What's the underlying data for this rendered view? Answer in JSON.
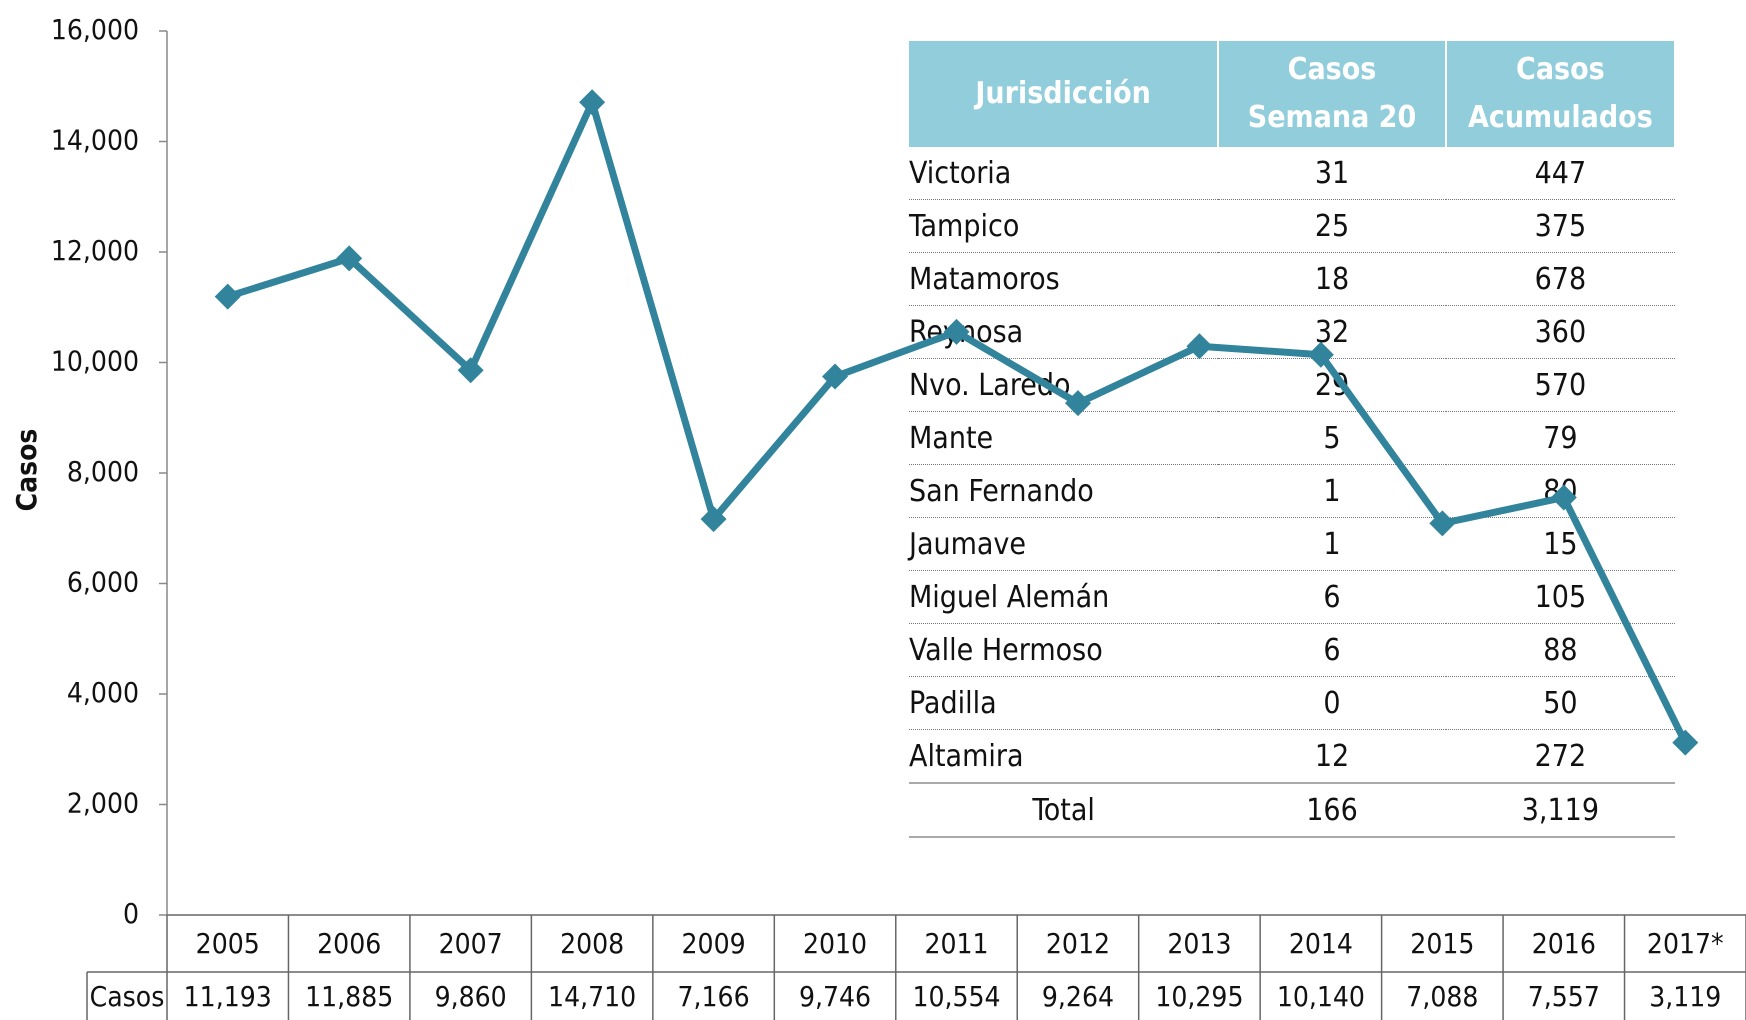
{
  "chart_data": {
    "type": "line",
    "y_label": "Casos",
    "categories": [
      "2005",
      "2006",
      "2007",
      "2008",
      "2009",
      "2010",
      "2011",
      "2012",
      "2013",
      "2014",
      "2015",
      "2016",
      "2017*"
    ],
    "series": [
      {
        "name": "Casos",
        "color": "#31849b",
        "values": [
          11193,
          11885,
          9860,
          14710,
          7166,
          9746,
          10554,
          9264,
          10295,
          10140,
          7088,
          7557,
          3119
        ],
        "value_labels": [
          "11,193",
          "11,885",
          "9,860",
          "14,710",
          "7,166",
          "9,746",
          "10,554",
          "9,264",
          "10,295",
          "10,140",
          "7,088",
          "7,557",
          "3,119"
        ]
      }
    ],
    "ylim": [
      0,
      16000
    ],
    "yticks": [
      0,
      {
        "value": 2000,
        "label": "2,000"
      },
      {
        "value": 4000,
        "label": "4,000"
      },
      {
        "value": 6000,
        "label": "6,000"
      },
      {
        "value": 8000,
        "label": "8,000"
      },
      {
        "value": 10000,
        "label": "10,000"
      },
      {
        "value": 12000,
        "label": "12,000"
      },
      {
        "value": 14000,
        "label": "14,000"
      },
      {
        "value": 16000,
        "label": "16,000"
      }
    ]
  },
  "table": {
    "columns": [
      [
        "Jurisdicción"
      ],
      [
        "Casos",
        "Semana 20"
      ],
      [
        "Casos",
        "Acumulados"
      ]
    ],
    "rows": [
      [
        "Victoria",
        31,
        447
      ],
      [
        "Tampico",
        25,
        375
      ],
      [
        "Matamoros",
        18,
        678
      ],
      [
        "Reynosa",
        32,
        360
      ],
      [
        "Nvo. Laredo",
        29,
        570
      ],
      [
        "Mante",
        5,
        79
      ],
      [
        "San Fernando",
        1,
        80
      ],
      [
        "Jaumave",
        1,
        15
      ],
      [
        "Miguel Alemán",
        6,
        105
      ],
      [
        "Valle Hermoso",
        6,
        88
      ],
      [
        "Padilla",
        0,
        50
      ],
      [
        "Altamira",
        12,
        272
      ]
    ],
    "total": [
      "Total",
      "166",
      "3,119"
    ]
  }
}
